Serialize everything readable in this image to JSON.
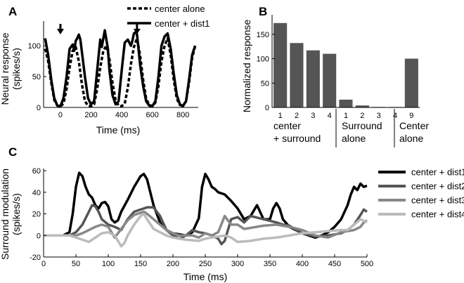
{
  "panel_letters": {
    "a": "A",
    "b": "B",
    "c": "C"
  },
  "chart_data": [
    {
      "panel": "A",
      "type": "line",
      "xlabel": "Time (ms)",
      "ylabel_line1": "Neural response",
      "ylabel_line2": "(spikes/s)",
      "xlim": [
        -110,
        900
      ],
      "ylim": [
        0,
        140
      ],
      "xticks": [
        0,
        200,
        400,
        600,
        800
      ],
      "yticks": [
        0,
        50,
        100
      ],
      "arrows_at_ms": [
        0,
        500
      ],
      "legend": [
        "center alone",
        "center + dist1"
      ],
      "series": [
        {
          "name": "center alone",
          "style": "dashed",
          "x": [
            -100,
            -80,
            -60,
            -40,
            -20,
            0,
            20,
            40,
            60,
            80,
            100,
            120,
            140,
            160,
            180,
            200,
            220,
            240,
            260,
            280,
            300,
            320,
            340,
            360,
            380,
            400,
            420,
            440,
            460,
            480,
            500,
            520,
            540,
            560,
            580,
            600,
            620,
            640,
            660,
            680,
            700,
            720,
            740,
            760,
            780,
            800,
            820,
            840,
            860,
            880
          ],
          "y": [
            95,
            75,
            40,
            12,
            3,
            2,
            6,
            30,
            65,
            92,
            98,
            75,
            38,
            10,
            3,
            2,
            5,
            30,
            65,
            92,
            100,
            78,
            40,
            12,
            3,
            2,
            6,
            32,
            70,
            98,
            112,
            85,
            45,
            14,
            4,
            2,
            8,
            35,
            75,
            100,
            112,
            85,
            45,
            14,
            4,
            3,
            10,
            40,
            80,
            100
          ]
        },
        {
          "name": "center + dist1",
          "style": "solid",
          "x": [
            -100,
            -80,
            -60,
            -40,
            -20,
            0,
            20,
            40,
            60,
            80,
            90,
            100,
            110,
            120,
            130,
            140,
            160,
            180,
            200,
            220,
            240,
            260,
            270,
            280,
            290,
            300,
            310,
            320,
            340,
            360,
            380,
            400,
            420,
            440,
            460,
            470,
            480,
            490,
            500,
            510,
            520,
            540,
            560,
            580,
            600,
            620,
            640,
            660,
            680,
            700,
            720,
            740,
            760,
            780,
            800,
            820,
            840,
            860,
            880
          ],
          "y": [
            112,
            85,
            45,
            15,
            3,
            2,
            15,
            50,
            95,
            102,
            92,
            108,
            112,
            118,
            110,
            90,
            50,
            15,
            5,
            10,
            60,
            110,
            98,
            112,
            125,
            110,
            95,
            60,
            20,
            5,
            10,
            60,
            105,
            110,
            100,
            108,
            120,
            122,
            118,
            95,
            70,
            35,
            10,
            3,
            2,
            10,
            50,
            100,
            115,
            120,
            95,
            55,
            20,
            5,
            2,
            10,
            45,
            85,
            100
          ]
        }
      ]
    },
    {
      "panel": "B",
      "type": "bar",
      "ylabel": "Normalized response",
      "ylim": [
        0,
        190
      ],
      "yticks": [
        0,
        50,
        100,
        150
      ],
      "categories": [
        "1",
        "2",
        "3",
        "4",
        "1",
        "2",
        "3",
        "4",
        "9"
      ],
      "values": [
        173,
        132,
        117,
        110,
        16,
        4,
        1,
        1,
        100
      ],
      "groups": [
        {
          "line1": "center",
          "line2": "+ surround"
        },
        {
          "line1": "Surround",
          "line2": "alone"
        },
        {
          "line1": "Center",
          "line2": "alone"
        }
      ]
    },
    {
      "panel": "C",
      "type": "line",
      "xlabel": "Time (ms)",
      "ylabel_line1": "Surround modulation",
      "ylabel_line2": "(spikes/s)",
      "xlim": [
        0,
        500
      ],
      "ylim": [
        -20,
        62
      ],
      "xticks": [
        0,
        50,
        100,
        150,
        200,
        250,
        300,
        350,
        400,
        450,
        500
      ],
      "yticks": [
        -20,
        0,
        20,
        40,
        60
      ],
      "series": [
        {
          "name": "center + dist1",
          "color": "#000000",
          "x": [
            0,
            20,
            30,
            40,
            45,
            50,
            55,
            60,
            65,
            70,
            75,
            80,
            85,
            90,
            95,
            100,
            105,
            110,
            115,
            120,
            130,
            140,
            150,
            155,
            160,
            165,
            170,
            180,
            190,
            200,
            210,
            220,
            230,
            240,
            245,
            250,
            255,
            260,
            265,
            270,
            280,
            290,
            300,
            310,
            320,
            330,
            340,
            350,
            355,
            360,
            365,
            370,
            380,
            390,
            400,
            410,
            420,
            430,
            440,
            450,
            460,
            470,
            475,
            480,
            485,
            490,
            495,
            500
          ],
          "y": [
            0,
            0,
            0,
            3,
            20,
            45,
            58,
            55,
            45,
            38,
            35,
            28,
            25,
            30,
            31,
            27,
            15,
            12,
            14,
            22,
            33,
            45,
            55,
            57,
            52,
            40,
            28,
            12,
            5,
            2,
            1,
            0,
            3,
            16,
            45,
            57,
            52,
            45,
            43,
            40,
            38,
            32,
            25,
            15,
            18,
            28,
            15,
            15,
            25,
            30,
            25,
            15,
            8,
            5,
            2,
            0,
            -2,
            0,
            3,
            8,
            15,
            28,
            38,
            45,
            42,
            48,
            45,
            46
          ]
        },
        {
          "name": "center + dist2",
          "color": "#555555",
          "x": [
            0,
            40,
            50,
            60,
            70,
            75,
            80,
            85,
            90,
            100,
            110,
            120,
            130,
            140,
            150,
            160,
            170,
            180,
            190,
            200,
            210,
            220,
            230,
            240,
            250,
            260,
            270,
            275,
            280,
            290,
            300,
            310,
            320,
            340,
            360,
            370,
            380,
            400,
            420,
            440,
            460,
            470,
            480,
            490,
            495,
            500
          ],
          "y": [
            0,
            0,
            3,
            10,
            22,
            28,
            27,
            22,
            15,
            10,
            8,
            5,
            15,
            22,
            24,
            26,
            26,
            18,
            5,
            0,
            -3,
            0,
            5,
            3,
            2,
            0,
            -3,
            -8,
            -5,
            15,
            17,
            12,
            18,
            15,
            12,
            10,
            9,
            2,
            -1,
            0,
            2,
            5,
            10,
            19,
            24,
            22
          ]
        },
        {
          "name": "center + dist3",
          "color": "#888888",
          "x": [
            0,
            50,
            60,
            70,
            80,
            90,
            100,
            110,
            120,
            130,
            140,
            150,
            155,
            160,
            170,
            180,
            190,
            200,
            210,
            220,
            230,
            240,
            250,
            260,
            270,
            280,
            290,
            300,
            310,
            320,
            340,
            360,
            380,
            400,
            420,
            440,
            460,
            480,
            490,
            495,
            500
          ],
          "y": [
            0,
            0,
            2,
            5,
            8,
            10,
            8,
            -2,
            6,
            14,
            19,
            21,
            22,
            20,
            15,
            10,
            5,
            2,
            0,
            0,
            0,
            -2,
            2,
            0,
            3,
            18,
            10,
            10,
            6,
            7,
            9,
            10,
            8,
            5,
            0,
            -2,
            3,
            5,
            8,
            12,
            14
          ]
        },
        {
          "name": "center + dist4",
          "color": "#bbbbbb",
          "x": [
            0,
            40,
            50,
            60,
            70,
            80,
            90,
            100,
            110,
            115,
            120,
            125,
            130,
            140,
            150,
            155,
            160,
            170,
            180,
            190,
            200,
            220,
            240,
            250,
            260,
            270,
            280,
            290,
            300,
            320,
            340,
            360,
            380,
            400,
            420,
            440,
            460,
            470,
            480,
            490,
            500
          ],
          "y": [
            0,
            0,
            -2,
            -4,
            -6,
            -2,
            2,
            3,
            0,
            -5,
            -10,
            -7,
            0,
            10,
            18,
            20,
            15,
            6,
            3,
            0,
            -2,
            -4,
            -5,
            -3,
            -2,
            -1,
            0,
            -2,
            -6,
            -5,
            -3,
            -2,
            0,
            2,
            3,
            4,
            5,
            5,
            10,
            15,
            12
          ]
        }
      ]
    }
  ]
}
